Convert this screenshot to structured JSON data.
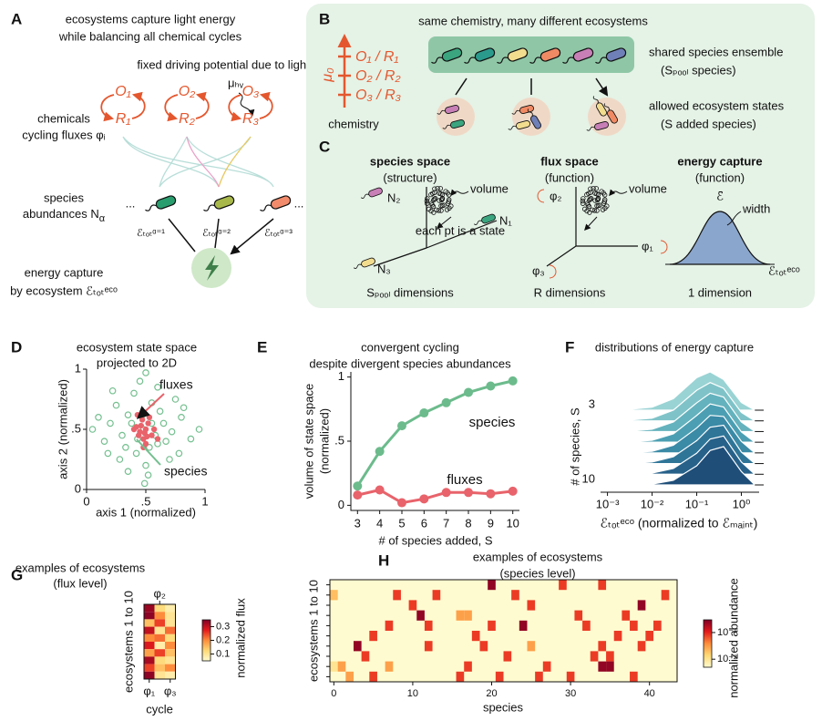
{
  "panel_A": {
    "letter": "A",
    "title": [
      "ecosystems capture light energy",
      "while balancing all chemical cycles"
    ],
    "driving": "fixed driving potential due to light",
    "mu": "μₕᵥ",
    "chemicals": [
      "chemicals",
      "cycling fluxes φᵢ"
    ],
    "cycles": [
      {
        "O": "O₁",
        "R": "R₁"
      },
      {
        "O": "O₂",
        "R": "R₂"
      },
      {
        "O": "O₃",
        "R": "R₃"
      }
    ],
    "species": [
      "species",
      "abundances N",
      "α"
    ],
    "ellipsis": "...",
    "energies": [
      "ℰₜₒₜᵅ⁼¹",
      "ℰₜₒₜᵅ⁼²",
      "ℰₜₒₜᵅ⁼³"
    ],
    "energy": [
      "energy capture",
      "by ecosystem ℰₜₒₜᵉᶜᵒ"
    ]
  },
  "panel_B": {
    "letter": "B",
    "title": "same chemistry, many different ecosystems",
    "axis": "μ₀",
    "levels": [
      "O₁ / R₁",
      "O₂ / R₂",
      "O₃ / R₃"
    ],
    "chemistry": "chemistry",
    "ensemble": [
      "shared species ensemble",
      "(Sₚₒₒₗ species)"
    ],
    "states": [
      "allowed ecosystem states",
      "(S added species)"
    ]
  },
  "panel_C": {
    "letter": "C",
    "species_space": {
      "title": [
        "species space",
        "(structure)"
      ],
      "axes": [
        "N₁",
        "N₂",
        "N₃"
      ],
      "volume": "volume",
      "point": "each pt is a state",
      "dims": "Sₚₒₒₗ dimensions"
    },
    "flux_space": {
      "title": [
        "flux space",
        "(function)"
      ],
      "axes": [
        "φ₁",
        "φ₂",
        "φ₃"
      ],
      "volume": "volume",
      "dims": "R dimensions"
    },
    "energy": {
      "title": [
        "energy capture",
        "(function)"
      ],
      "mean": "ℰ̄",
      "width": "width",
      "axis": "ℰₜₒₜᵉᶜᵒ",
      "dims": "1 dimension"
    }
  },
  "colormap": [
    "#fffbd0",
    "#fed976",
    "#fd8d3c",
    "#e31a1c",
    "#800026"
  ],
  "chart_data": [
    {
      "letter": "D",
      "type": "scatter",
      "title": [
        "ecosystem state space",
        "projected to 2D"
      ],
      "xlabel": "axis 1 (normalized)",
      "ylabel": "axis 2 (normalized)",
      "xlim": [
        0,
        1
      ],
      "ylim": [
        0,
        1
      ],
      "xticks": [
        0,
        {
          "value": 0.5,
          "label": ".5"
        },
        1
      ],
      "yticks": [
        0,
        {
          "value": 0.5,
          "label": ".5"
        },
        1
      ],
      "series": [
        {
          "name": "species",
          "color": "#74bf8f",
          "filled": false,
          "x": [
            0.48,
            0.35,
            0.6,
            0.3,
            0.65,
            0.42,
            0.55,
            0.2,
            0.72,
            0.4,
            0.5,
            0.25,
            0.7,
            0.15,
            0.8,
            0.45,
            0.52,
            0.1,
            0.88,
            0.33,
            0.62,
            0.38,
            0.58,
            0.28,
            0.75,
            0.47,
            0.53,
            0.05,
            0.95,
            0.43,
            0.67,
            0.22,
            0.6,
            0.35,
            0.78,
            0.5,
            0.49,
            0.18,
            0.82,
            0.55
          ],
          "y": [
            0.5,
            0.62,
            0.38,
            0.45,
            0.55,
            0.3,
            0.72,
            0.55,
            0.48,
            0.8,
            0.2,
            0.7,
            0.25,
            0.4,
            0.6,
            0.9,
            0.12,
            0.6,
            0.42,
            0.35,
            0.65,
            0.55,
            0.45,
            0.25,
            0.75,
            0.62,
            0.35,
            0.5,
            0.5,
            0.42,
            0.4,
            0.82,
            0.85,
            0.15,
            0.3,
            0.97,
            0.05,
            0.3,
            0.68,
            0.55
          ]
        },
        {
          "name": "fluxes",
          "color": "#e8636b",
          "filled": true,
          "x": [
            0.45,
            0.5,
            0.48,
            0.52,
            0.42,
            0.55,
            0.47,
            0.5,
            0.44,
            0.53,
            0.49,
            0.46,
            0.51,
            0.57,
            0.4,
            0.48,
            0.6,
            0.43
          ],
          "y": [
            0.48,
            0.5,
            0.42,
            0.55,
            0.52,
            0.45,
            0.58,
            0.38,
            0.45,
            0.6,
            0.47,
            0.53,
            0.44,
            0.5,
            0.5,
            0.35,
            0.42,
            0.62
          ]
        }
      ]
    },
    {
      "letter": "E",
      "type": "line",
      "title": [
        "convergent cycling",
        "despite divergent species abundances"
      ],
      "xlabel": "# of species added, S",
      "ylabel": [
        "volume of state space",
        "(normalized)"
      ],
      "x": [
        3,
        4,
        5,
        6,
        7,
        8,
        9,
        10
      ],
      "xlim": [
        2.7,
        10.3
      ],
      "xticks": [
        3,
        4,
        5,
        6,
        7,
        8,
        9,
        10
      ],
      "ylim": [
        -0.04,
        1.04
      ],
      "yticks": [
        0,
        {
          "value": 0.5,
          "label": ".5"
        },
        1
      ],
      "series": [
        {
          "name": "species",
          "color": "#6cbb8c",
          "values": [
            0.15,
            0.42,
            0.62,
            0.72,
            0.8,
            0.88,
            0.93,
            0.97
          ]
        },
        {
          "name": "fluxes",
          "color": "#e8636b",
          "values": [
            0.08,
            0.12,
            0.02,
            0.05,
            0.1,
            0.1,
            0.09,
            0.11
          ]
        }
      ]
    },
    {
      "letter": "F",
      "type": "ridgeline",
      "title": "distributions of energy capture",
      "xlabel": "ℰₜₒₜᵉᶜᵒ  (normalized to ℰₘₐᵢₙₜ)",
      "ylabel": "# of species, S",
      "xscale": "log",
      "xlim": [
        0.0007,
        2.5
      ],
      "xticks": [
        {
          "value": 0.001,
          "label": "10⁻³"
        },
        {
          "value": 0.01,
          "label": "10⁻²"
        },
        {
          "value": 0.1,
          "label": "10⁻¹"
        },
        {
          "value": 1,
          "label": "10⁰"
        }
      ],
      "ylim": [
        3,
        10
      ],
      "yticks": [
        3,
        10
      ],
      "x": [
        0.001,
        0.003,
        0.01,
        0.03,
        0.1,
        0.2,
        0.4,
        1,
        2
      ],
      "ridges": [
        {
          "S": 3,
          "color": "#9ad3d4",
          "values": [
            0,
            0.02,
            0.08,
            0.3,
            0.85,
            1,
            0.8,
            0.2,
            0
          ]
        },
        {
          "S": 4,
          "color": "#7fc3c8",
          "values": [
            0,
            0.02,
            0.07,
            0.28,
            0.8,
            1,
            0.85,
            0.22,
            0
          ]
        },
        {
          "S": 5,
          "color": "#64b2bd",
          "values": [
            0,
            0.01,
            0.06,
            0.25,
            0.75,
            1,
            0.9,
            0.25,
            0
          ]
        },
        {
          "S": 6,
          "color": "#4c9fb2",
          "values": [
            0,
            0.01,
            0.05,
            0.22,
            0.7,
            1,
            0.92,
            0.27,
            0
          ]
        },
        {
          "S": 7,
          "color": "#3b8aa6",
          "values": [
            0,
            0.01,
            0.04,
            0.2,
            0.65,
            0.98,
            0.95,
            0.3,
            0
          ]
        },
        {
          "S": 8,
          "color": "#2f7598",
          "values": [
            0,
            0,
            0.04,
            0.18,
            0.6,
            0.95,
            1,
            0.3,
            0
          ]
        },
        {
          "S": 9,
          "color": "#27618a",
          "values": [
            0,
            0,
            0.03,
            0.15,
            0.55,
            0.92,
            1,
            0.32,
            0
          ]
        },
        {
          "S": 10,
          "color": "#1f4e79",
          "values": [
            0,
            0,
            0.02,
            0.12,
            0.5,
            0.9,
            1,
            0.35,
            0
          ]
        }
      ]
    },
    {
      "letter": "G",
      "type": "heatmap",
      "title": [
        "examples of ecosystems",
        "(flux level)"
      ],
      "ylabel": "ecosystems 1 to 10",
      "xlabel": "cycle",
      "columns": [
        "φ₁",
        "φ₂",
        "φ₃"
      ],
      "values": [
        [
          0.33,
          0.12,
          0.08
        ],
        [
          0.34,
          0.2,
          0.1
        ],
        [
          0.15,
          0.25,
          0.1
        ],
        [
          0.3,
          0.1,
          0.22
        ],
        [
          0.2,
          0.22,
          0.12
        ],
        [
          0.28,
          0.08,
          0.2
        ],
        [
          0.18,
          0.25,
          0.15
        ],
        [
          0.32,
          0.12,
          0.1
        ],
        [
          0.25,
          0.15,
          0.2
        ],
        [
          0.34,
          0.1,
          0.08
        ]
      ],
      "colorbar_label": "normalized flux",
      "clim": [
        0.05,
        0.35
      ],
      "cticks": [
        0.1,
        0.2,
        0.3
      ]
    },
    {
      "letter": "H",
      "type": "heatmap",
      "title": [
        "examples of ecosystems",
        "(species level)"
      ],
      "ylabel": "ecosystems 1 to 10",
      "xlabel": "species",
      "xlim": [
        -0.5,
        43.5
      ],
      "xticks": [
        0,
        10,
        20,
        30,
        40
      ],
      "ylim": [
        0.5,
        10.5
      ],
      "cells": [
        {
          "ecosystem": 1,
          "species": 20,
          "value": 0.25
        },
        {
          "ecosystem": 1,
          "species": 29,
          "value": 0.08
        },
        {
          "ecosystem": 1,
          "species": 34,
          "value": 0.08
        },
        {
          "ecosystem": 2,
          "species": 0,
          "value": 0.02
        },
        {
          "ecosystem": 2,
          "species": 8,
          "value": 0.08
        },
        {
          "ecosystem": 2,
          "species": 13,
          "value": 0.08
        },
        {
          "ecosystem": 2,
          "species": 23,
          "value": 0.08
        },
        {
          "ecosystem": 2,
          "species": 42,
          "value": 0.08
        },
        {
          "ecosystem": 3,
          "species": 10,
          "value": 0.08
        },
        {
          "ecosystem": 3,
          "species": 25,
          "value": 0.08
        },
        {
          "ecosystem": 3,
          "species": 39,
          "value": 0.25
        },
        {
          "ecosystem": 4,
          "species": 11,
          "value": 0.25
        },
        {
          "ecosystem": 4,
          "species": 16,
          "value": 0.03
        },
        {
          "ecosystem": 4,
          "species": 17,
          "value": 0.03
        },
        {
          "ecosystem": 4,
          "species": 31,
          "value": 0.08
        },
        {
          "ecosystem": 4,
          "species": 37,
          "value": 0.08
        },
        {
          "ecosystem": 5,
          "species": 7,
          "value": 0.08
        },
        {
          "ecosystem": 5,
          "species": 12,
          "value": 0.08
        },
        {
          "ecosystem": 5,
          "species": 20,
          "value": 0.08
        },
        {
          "ecosystem": 5,
          "species": 24,
          "value": 0.25
        },
        {
          "ecosystem": 5,
          "species": 32,
          "value": 0.08
        },
        {
          "ecosystem": 5,
          "species": 38,
          "value": 0.08
        },
        {
          "ecosystem": 5,
          "species": 41,
          "value": 0.08
        },
        {
          "ecosystem": 6,
          "species": 5,
          "value": 0.08
        },
        {
          "ecosystem": 6,
          "species": 18,
          "value": 0.08
        },
        {
          "ecosystem": 6,
          "species": 36,
          "value": 0.08
        },
        {
          "ecosystem": 6,
          "species": 40,
          "value": 0.08
        },
        {
          "ecosystem": 7,
          "species": 3,
          "value": 0.25
        },
        {
          "ecosystem": 7,
          "species": 12,
          "value": 0.08
        },
        {
          "ecosystem": 7,
          "species": 19,
          "value": 0.08
        },
        {
          "ecosystem": 7,
          "species": 25,
          "value": 0.03
        },
        {
          "ecosystem": 7,
          "species": 34,
          "value": 0.08
        },
        {
          "ecosystem": 7,
          "species": 39,
          "value": 0.08
        },
        {
          "ecosystem": 8,
          "species": 4,
          "value": 0.08
        },
        {
          "ecosystem": 8,
          "species": 22,
          "value": 0.08
        },
        {
          "ecosystem": 8,
          "species": 33,
          "value": 0.08
        },
        {
          "ecosystem": 8,
          "species": 35,
          "value": 0.08
        },
        {
          "ecosystem": 9,
          "species": 0,
          "value": 0.01
        },
        {
          "ecosystem": 9,
          "species": 1,
          "value": 0.03
        },
        {
          "ecosystem": 9,
          "species": 7,
          "value": 0.03
        },
        {
          "ecosystem": 9,
          "species": 17,
          "value": 0.08
        },
        {
          "ecosystem": 9,
          "species": 27,
          "value": 0.08
        },
        {
          "ecosystem": 9,
          "species": 34,
          "value": 0.25
        },
        {
          "ecosystem": 9,
          "species": 35,
          "value": 0.25
        },
        {
          "ecosystem": 10,
          "species": 2,
          "value": 0.03
        },
        {
          "ecosystem": 10,
          "species": 5,
          "value": 0.08
        },
        {
          "ecosystem": 10,
          "species": 16,
          "value": 0.08
        },
        {
          "ecosystem": 10,
          "species": 21,
          "value": 0.08
        },
        {
          "ecosystem": 10,
          "species": 26,
          "value": 0.08
        },
        {
          "ecosystem": 10,
          "species": 30,
          "value": 0.08
        },
        {
          "ecosystem": 10,
          "species": 38,
          "value": 0.08
        }
      ],
      "colorbar_label": "normalized abundance",
      "scale": "log",
      "clim": [
        0.005,
        0.3
      ],
      "cticks": [
        {
          "value": 0.01,
          "label": "10⁻²"
        },
        {
          "value": 0.1,
          "label": "10⁻¹"
        }
      ]
    }
  ]
}
